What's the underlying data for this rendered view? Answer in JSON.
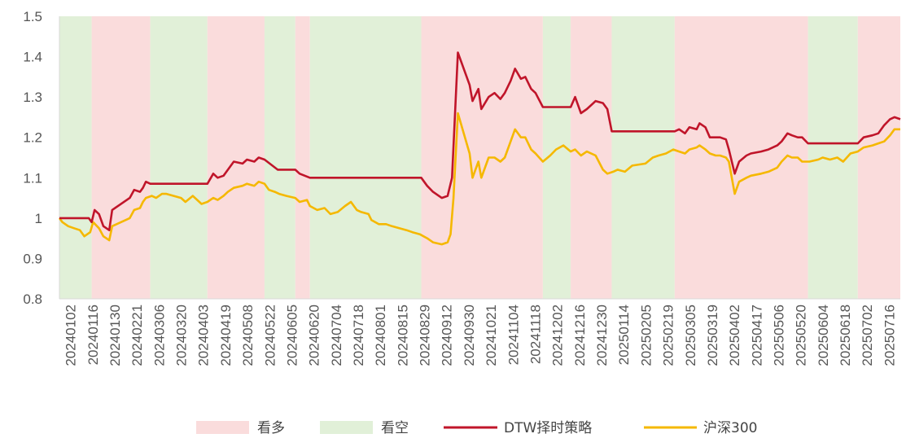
{
  "chart_data": {
    "type": "line",
    "title": "",
    "xlabel": "",
    "ylabel": "",
    "ylim": [
      0.8,
      1.5
    ],
    "yticks": [
      "0.8",
      "0.9",
      "1",
      "1.1",
      "1.2",
      "1.3",
      "1.4",
      "1.5"
    ],
    "xtick_labels": [
      "20240102",
      "20240116",
      "20240130",
      "20240221",
      "20240306",
      "20240320",
      "20240403",
      "20240419",
      "20240508",
      "20240522",
      "20240605",
      "20240620",
      "20240704",
      "20240718",
      "20240801",
      "20240815",
      "20240829",
      "20240912",
      "20240930",
      "20241021",
      "20241104",
      "20241118",
      "20241202",
      "20241216",
      "20241230",
      "20250114",
      "20250205",
      "20250219",
      "20250305",
      "20250319",
      "20250402",
      "20250417",
      "20250506",
      "20250520",
      "20250604",
      "20250618",
      "20250702",
      "20250716"
    ],
    "x_range": [
      "20240102",
      "20250729"
    ],
    "grid": false,
    "legend_position": "bottom",
    "legend": {
      "bull": "看多",
      "bear": "看空",
      "strategy": "DTW择时策略",
      "index": "沪深300"
    },
    "colors": {
      "bull_band": "#fadcdc",
      "bear_band": "#e1f0d8",
      "strategy": "#c0152a",
      "index": "#f5b800"
    },
    "regimes": [
      {
        "start": "20240102",
        "end": "20240124",
        "signal": "看空"
      },
      {
        "start": "20240124",
        "end": "20240304",
        "signal": "看多"
      },
      {
        "start": "20240304",
        "end": "20240412",
        "signal": "看空"
      },
      {
        "start": "20240412",
        "end": "20240521",
        "signal": "看多"
      },
      {
        "start": "20240521",
        "end": "20240611",
        "signal": "看空"
      },
      {
        "start": "20240611",
        "end": "20240621",
        "signal": "看多"
      },
      {
        "start": "20240621",
        "end": "20240905",
        "signal": "看空"
      },
      {
        "start": "20240905",
        "end": "20241127",
        "signal": "看多"
      },
      {
        "start": "20241127",
        "end": "20241216",
        "signal": "看空"
      },
      {
        "start": "20241216",
        "end": "20250113",
        "signal": "看多"
      },
      {
        "start": "20250113",
        "end": "20250225",
        "signal": "看空"
      },
      {
        "start": "20250225",
        "end": "20250527",
        "signal": "看多"
      },
      {
        "start": "20250527",
        "end": "20250630",
        "signal": "看空"
      },
      {
        "start": "20250630",
        "end": "20250729",
        "signal": "看多"
      }
    ],
    "series": [
      {
        "name": "DTW择时策略",
        "points": [
          [
            "20240102",
            1.0
          ],
          [
            "20240105",
            1.0
          ],
          [
            "20240110",
            1.0
          ],
          [
            "20240116",
            1.0
          ],
          [
            "20240122",
            1.0
          ],
          [
            "20240124",
            0.99
          ],
          [
            "20240126",
            1.02
          ],
          [
            "20240129",
            1.01
          ],
          [
            "20240201",
            0.98
          ],
          [
            "20240205",
            0.97
          ],
          [
            "20240207",
            1.02
          ],
          [
            "20240219",
            1.05
          ],
          [
            "20240222",
            1.07
          ],
          [
            "20240226",
            1.065
          ],
          [
            "20240228",
            1.075
          ],
          [
            "20240301",
            1.09
          ],
          [
            "20240304",
            1.085
          ],
          [
            "20240315",
            1.085
          ],
          [
            "20240401",
            1.085
          ],
          [
            "20240412",
            1.085
          ],
          [
            "20240416",
            1.11
          ],
          [
            "20240419",
            1.1
          ],
          [
            "20240423",
            1.105
          ],
          [
            "20240426",
            1.12
          ],
          [
            "20240430",
            1.14
          ],
          [
            "20240506",
            1.135
          ],
          [
            "20240509",
            1.145
          ],
          [
            "20240514",
            1.14
          ],
          [
            "20240517",
            1.15
          ],
          [
            "20240521",
            1.145
          ],
          [
            "20240530",
            1.12
          ],
          [
            "20240611",
            1.12
          ],
          [
            "20240614",
            1.11
          ],
          [
            "20240621",
            1.1
          ],
          [
            "20240715",
            1.1
          ],
          [
            "20240801",
            1.1
          ],
          [
            "20240815",
            1.1
          ],
          [
            "20240905",
            1.1
          ],
          [
            "20240909",
            1.08
          ],
          [
            "20240913",
            1.065
          ],
          [
            "20240919",
            1.05
          ],
          [
            "20240923",
            1.055
          ],
          [
            "20240926",
            1.1
          ],
          [
            "20240930",
            1.41
          ],
          [
            "20241008",
            1.33
          ],
          [
            "20241010",
            1.29
          ],
          [
            "20241014",
            1.32
          ],
          [
            "20241016",
            1.27
          ],
          [
            "20241021",
            1.3
          ],
          [
            "20241025",
            1.31
          ],
          [
            "20241029",
            1.295
          ],
          [
            "20241101",
            1.31
          ],
          [
            "20241105",
            1.34
          ],
          [
            "20241108",
            1.37
          ],
          [
            "20241112",
            1.345
          ],
          [
            "20241115",
            1.35
          ],
          [
            "20241119",
            1.32
          ],
          [
            "20241122",
            1.31
          ],
          [
            "20241127",
            1.275
          ],
          [
            "20241216",
            1.275
          ],
          [
            "20241219",
            1.3
          ],
          [
            "20241223",
            1.26
          ],
          [
            "20241227",
            1.27
          ],
          [
            "20250102",
            1.29
          ],
          [
            "20250107",
            1.285
          ],
          [
            "20250110",
            1.27
          ],
          [
            "20250113",
            1.215
          ],
          [
            "20250225",
            1.215
          ],
          [
            "20250228",
            1.22
          ],
          [
            "20250304",
            1.21
          ],
          [
            "20250307",
            1.225
          ],
          [
            "20250312",
            1.22
          ],
          [
            "20250314",
            1.235
          ],
          [
            "20250318",
            1.225
          ],
          [
            "20250321",
            1.2
          ],
          [
            "20250328",
            1.2
          ],
          [
            "20250401",
            1.195
          ],
          [
            "20250403",
            1.17
          ],
          [
            "20250407",
            1.11
          ],
          [
            "20250410",
            1.14
          ],
          [
            "20250415",
            1.155
          ],
          [
            "20250418",
            1.16
          ],
          [
            "20250425",
            1.165
          ],
          [
            "20250430",
            1.17
          ],
          [
            "20250506",
            1.18
          ],
          [
            "20250509",
            1.19
          ],
          [
            "20250513",
            1.21
          ],
          [
            "20250516",
            1.205
          ],
          [
            "20250520",
            1.2
          ],
          [
            "20250523",
            1.2
          ],
          [
            "20250527",
            1.185
          ],
          [
            "20250630",
            1.185
          ],
          [
            "20250704",
            1.2
          ],
          [
            "20250710",
            1.205
          ],
          [
            "20250714",
            1.21
          ],
          [
            "20250718",
            1.23
          ],
          [
            "20250722",
            1.245
          ],
          [
            "20250725",
            1.25
          ],
          [
            "20250729",
            1.245
          ]
        ]
      },
      {
        "name": "沪深300",
        "points": [
          [
            "20240102",
            1.0
          ],
          [
            "20240104",
            0.99
          ],
          [
            "20240108",
            0.98
          ],
          [
            "20240112",
            0.975
          ],
          [
            "20240116",
            0.97
          ],
          [
            "20240119",
            0.955
          ],
          [
            "20240123",
            0.965
          ],
          [
            "20240125",
            0.99
          ],
          [
            "20240129",
            0.975
          ],
          [
            "20240201",
            0.955
          ],
          [
            "20240205",
            0.945
          ],
          [
            "20240207",
            0.98
          ],
          [
            "20240219",
            1.0
          ],
          [
            "20240222",
            1.02
          ],
          [
            "20240226",
            1.025
          ],
          [
            "20240228",
            1.04
          ],
          [
            "20240301",
            1.05
          ],
          [
            "20240305",
            1.055
          ],
          [
            "20240308",
            1.05
          ],
          [
            "20240312",
            1.06
          ],
          [
            "20240315",
            1.06
          ],
          [
            "20240320",
            1.055
          ],
          [
            "20240325",
            1.05
          ],
          [
            "20240328",
            1.04
          ],
          [
            "20240402",
            1.055
          ],
          [
            "20240408",
            1.035
          ],
          [
            "20240412",
            1.04
          ],
          [
            "20240416",
            1.05
          ],
          [
            "20240419",
            1.045
          ],
          [
            "20240423",
            1.055
          ],
          [
            "20240426",
            1.065
          ],
          [
            "20240430",
            1.075
          ],
          [
            "20240506",
            1.08
          ],
          [
            "20240509",
            1.085
          ],
          [
            "20240514",
            1.08
          ],
          [
            "20240517",
            1.09
          ],
          [
            "20240521",
            1.085
          ],
          [
            "20240524",
            1.07
          ],
          [
            "20240528",
            1.065
          ],
          [
            "20240531",
            1.06
          ],
          [
            "20240605",
            1.055
          ],
          [
            "20240611",
            1.05
          ],
          [
            "20240614",
            1.04
          ],
          [
            "20240619",
            1.045
          ],
          [
            "20240621",
            1.03
          ],
          [
            "20240626",
            1.02
          ],
          [
            "20240701",
            1.025
          ],
          [
            "20240705",
            1.01
          ],
          [
            "20240710",
            1.015
          ],
          [
            "20240715",
            1.03
          ],
          [
            "20240719",
            1.04
          ],
          [
            "20240723",
            1.02
          ],
          [
            "20240726",
            1.015
          ],
          [
            "20240731",
            1.01
          ],
          [
            "20240802",
            0.995
          ],
          [
            "20240807",
            0.985
          ],
          [
            "20240812",
            0.985
          ],
          [
            "20240816",
            0.98
          ],
          [
            "20240821",
            0.975
          ],
          [
            "20240826",
            0.97
          ],
          [
            "20240830",
            0.965
          ],
          [
            "20240904",
            0.96
          ],
          [
            "20240909",
            0.95
          ],
          [
            "20240913",
            0.94
          ],
          [
            "20240919",
            0.935
          ],
          [
            "20240923",
            0.94
          ],
          [
            "20240925",
            0.96
          ],
          [
            "20240927",
            1.05
          ],
          [
            "20240930",
            1.26
          ],
          [
            "20241008",
            1.16
          ],
          [
            "20241010",
            1.1
          ],
          [
            "20241014",
            1.14
          ],
          [
            "20241016",
            1.1
          ],
          [
            "20241021",
            1.15
          ],
          [
            "20241025",
            1.15
          ],
          [
            "20241029",
            1.14
          ],
          [
            "20241101",
            1.15
          ],
          [
            "20241105",
            1.19
          ],
          [
            "20241108",
            1.22
          ],
          [
            "20241112",
            1.2
          ],
          [
            "20241115",
            1.2
          ],
          [
            "20241119",
            1.17
          ],
          [
            "20241122",
            1.16
          ],
          [
            "20241127",
            1.14
          ],
          [
            "20241202",
            1.155
          ],
          [
            "20241206",
            1.17
          ],
          [
            "20241211",
            1.18
          ],
          [
            "20241216",
            1.165
          ],
          [
            "20241219",
            1.17
          ],
          [
            "20241223",
            1.155
          ],
          [
            "20241227",
            1.165
          ],
          [
            "20250102",
            1.155
          ],
          [
            "20250107",
            1.12
          ],
          [
            "20250110",
            1.11
          ],
          [
            "20250114",
            1.115
          ],
          [
            "20250117",
            1.12
          ],
          [
            "20250122",
            1.115
          ],
          [
            "20250127",
            1.13
          ],
          [
            "20250205",
            1.135
          ],
          [
            "20250210",
            1.15
          ],
          [
            "20250214",
            1.155
          ],
          [
            "20250219",
            1.16
          ],
          [
            "20250224",
            1.17
          ],
          [
            "20250228",
            1.165
          ],
          [
            "20250304",
            1.16
          ],
          [
            "20250307",
            1.17
          ],
          [
            "20250312",
            1.175
          ],
          [
            "20250314",
            1.18
          ],
          [
            "20250318",
            1.17
          ],
          [
            "20250321",
            1.16
          ],
          [
            "20250325",
            1.155
          ],
          [
            "20250328",
            1.155
          ],
          [
            "20250401",
            1.15
          ],
          [
            "20250403",
            1.14
          ],
          [
            "20250407",
            1.06
          ],
          [
            "20250410",
            1.09
          ],
          [
            "20250415",
            1.1
          ],
          [
            "20250418",
            1.105
          ],
          [
            "20250425",
            1.11
          ],
          [
            "20250430",
            1.115
          ],
          [
            "20250506",
            1.125
          ],
          [
            "20250509",
            1.14
          ],
          [
            "20250513",
            1.155
          ],
          [
            "20250516",
            1.15
          ],
          [
            "20250520",
            1.15
          ],
          [
            "20250523",
            1.14
          ],
          [
            "20250528",
            1.14
          ],
          [
            "20250603",
            1.145
          ],
          [
            "20250606",
            1.15
          ],
          [
            "20250611",
            1.145
          ],
          [
            "20250616",
            1.15
          ],
          [
            "20250620",
            1.14
          ],
          [
            "20250625",
            1.16
          ],
          [
            "20250630",
            1.165
          ],
          [
            "20250704",
            1.175
          ],
          [
            "20250710",
            1.18
          ],
          [
            "20250714",
            1.185
          ],
          [
            "20250718",
            1.19
          ],
          [
            "20250722",
            1.205
          ],
          [
            "20250725",
            1.22
          ],
          [
            "20250729",
            1.22
          ]
        ]
      }
    ]
  }
}
